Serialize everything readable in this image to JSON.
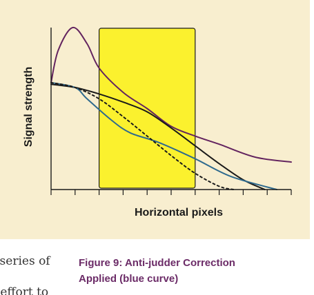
{
  "figure": {
    "caption_line1": "Figure 9: Anti-judder Correction",
    "caption_line2": "Applied (blue curve)"
  },
  "body_text": {
    "line1": "a series of",
    "line2": "n effort to"
  },
  "colors": {
    "panel_background": "#f8eecf",
    "highlight_fill": "#fbf12e",
    "purple_series": "#63245f",
    "black_series": "#1a1a1a",
    "blue_series": "#2e6a8e",
    "dashed_series": "#1a1a1a",
    "caption": "#6b2b67"
  },
  "chart_data": {
    "type": "line",
    "title": "",
    "xlabel": "Horizontal pixels",
    "ylabel": "Signal strength",
    "xlim": [
      0,
      10
    ],
    "ylim": [
      0,
      10
    ],
    "x_ticks": [
      0,
      1,
      2,
      3,
      4,
      5,
      6,
      7,
      8,
      9,
      10
    ],
    "show_tick_labels": false,
    "grid": false,
    "legend": "none",
    "highlight_region": {
      "x_start": 2,
      "x_end": 6,
      "fill": "#fbf12e"
    },
    "series": [
      {
        "color": "#63245f",
        "style": "solid",
        "points": [
          [
            0,
            6.6
          ],
          [
            0.3,
            8.6
          ],
          [
            0.9,
            10.0
          ],
          [
            1.5,
            9.0
          ],
          [
            2.0,
            7.5
          ],
          [
            3.0,
            6.0
          ],
          [
            4.0,
            5.0
          ],
          [
            5.0,
            3.9
          ],
          [
            6.0,
            3.3
          ],
          [
            7.0,
            2.8
          ],
          [
            8.5,
            2.0
          ],
          [
            10.0,
            1.7
          ]
        ]
      },
      {
        "color": "#1a1a1a",
        "style": "solid",
        "points": [
          [
            0,
            6.5
          ],
          [
            1.0,
            6.3
          ],
          [
            2.0,
            5.9
          ],
          [
            3.0,
            5.4
          ],
          [
            4.0,
            4.8
          ],
          [
            5.0,
            3.8
          ],
          [
            6.0,
            2.7
          ],
          [
            7.0,
            1.6
          ],
          [
            8.0,
            0.6
          ],
          [
            8.9,
            0.0
          ]
        ]
      },
      {
        "color": "#2e6a8e",
        "style": "solid",
        "points": [
          [
            0,
            6.6
          ],
          [
            1.0,
            6.3
          ],
          [
            1.5,
            5.6
          ],
          [
            2.5,
            4.3
          ],
          [
            3.3,
            3.5
          ],
          [
            4.5,
            2.9
          ],
          [
            6.0,
            1.9
          ],
          [
            7.5,
            0.8
          ],
          [
            9.4,
            0.0
          ]
        ]
      },
      {
        "color": "#1a1a1a",
        "style": "dashed",
        "points": [
          [
            0,
            6.6
          ],
          [
            1.0,
            6.3
          ],
          [
            2.0,
            5.6
          ],
          [
            3.0,
            4.5
          ],
          [
            4.0,
            3.3
          ],
          [
            5.0,
            2.1
          ],
          [
            6.0,
            1.0
          ],
          [
            7.0,
            0.2
          ],
          [
            7.6,
            0.0
          ]
        ]
      }
    ]
  }
}
